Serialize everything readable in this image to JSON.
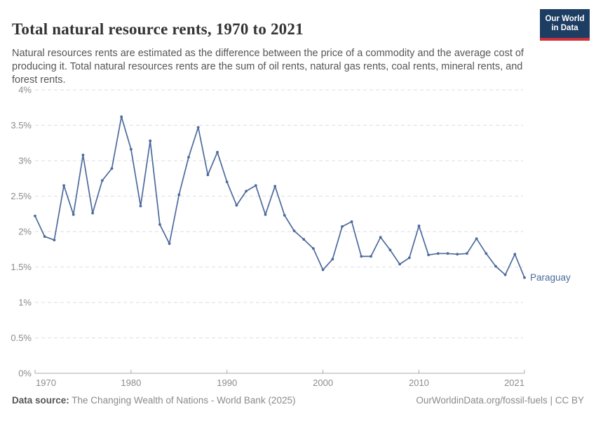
{
  "header": {
    "title": "Total natural resource rents, 1970 to 2021",
    "subtitle": "Natural resources rents are estimated as the difference between the price of a commodity and the average cost of producing it. Total natural resources rents are the sum of oil rents, natural gas rents, coal rents, mineral rents, and forest rents.",
    "logo": {
      "line1": "Our World",
      "line2": "in Data"
    }
  },
  "chart_data": {
    "type": "line",
    "title": "Total natural resource rents, 1970 to 2021",
    "xlabel": "",
    "ylabel": "",
    "ylim": [
      0,
      4
    ],
    "xlim": [
      1970,
      2021
    ],
    "grid": "horizontal-dashed",
    "legend_position": "end-of-line-label",
    "x": [
      1970,
      1971,
      1972,
      1973,
      1974,
      1975,
      1976,
      1977,
      1978,
      1979,
      1980,
      1981,
      1982,
      1983,
      1984,
      1985,
      1986,
      1987,
      1988,
      1989,
      1990,
      1991,
      1992,
      1993,
      1994,
      1995,
      1996,
      1997,
      1998,
      1999,
      2000,
      2001,
      2002,
      2003,
      2004,
      2005,
      2006,
      2007,
      2008,
      2009,
      2010,
      2011,
      2012,
      2013,
      2014,
      2015,
      2016,
      2017,
      2018,
      2019,
      2020,
      2021
    ],
    "series": [
      {
        "name": "Paraguay",
        "color": "#4c6a9c",
        "values": [
          2.22,
          1.93,
          1.88,
          2.65,
          2.24,
          3.08,
          2.26,
          2.72,
          2.89,
          3.62,
          3.16,
          2.36,
          3.28,
          2.1,
          1.83,
          2.52,
          3.05,
          3.47,
          2.8,
          3.12,
          2.7,
          2.37,
          2.57,
          2.65,
          2.24,
          2.64,
          2.23,
          2.01,
          1.89,
          1.76,
          1.46,
          1.61,
          2.07,
          2.14,
          1.65,
          1.65,
          1.92,
          1.74,
          1.54,
          1.63,
          2.08,
          1.67,
          1.69,
          1.69,
          1.68,
          1.69,
          1.9,
          1.69,
          1.51,
          1.39,
          1.68,
          1.35
        ]
      }
    ],
    "yticks": [
      {
        "v": 0,
        "label": "0%"
      },
      {
        "v": 0.5,
        "label": "0.5%"
      },
      {
        "v": 1,
        "label": "1%"
      },
      {
        "v": 1.5,
        "label": "1.5%"
      },
      {
        "v": 2,
        "label": "2%"
      },
      {
        "v": 2.5,
        "label": "2.5%"
      },
      {
        "v": 3,
        "label": "3%"
      },
      {
        "v": 3.5,
        "label": "3.5%"
      },
      {
        "v": 4,
        "label": "4%"
      }
    ],
    "xticks": [
      {
        "v": 1970,
        "label": "1970"
      },
      {
        "v": 1980,
        "label": "1980"
      },
      {
        "v": 1990,
        "label": "1990"
      },
      {
        "v": 2000,
        "label": "2000"
      },
      {
        "v": 2010,
        "label": "2010"
      },
      {
        "v": 2021,
        "label": "2021"
      }
    ]
  },
  "footer": {
    "datasource_label": "Data source:",
    "datasource_text": "The Changing Wealth of Nations - World Bank (2025)",
    "credit": "OurWorldinData.org/fossil-fuels | CC BY"
  },
  "colors": {
    "line": "#4c6a9c",
    "grid": "#dedede",
    "axis": "#a8a8a8",
    "tick_text": "#8c8c8c",
    "title_text": "#333333",
    "subtitle_text": "#565656",
    "footer_text": "#8a8a8a",
    "logo_bg": "#1d3d63",
    "logo_stripe": "#cf3138"
  }
}
